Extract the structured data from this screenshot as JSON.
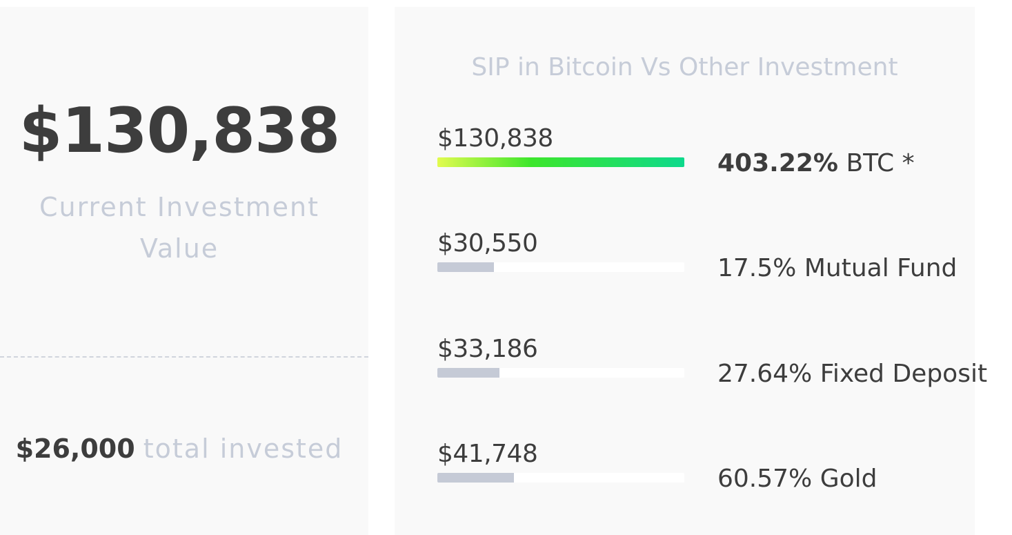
{
  "summary": {
    "current_value": "$130,838",
    "current_label": "Current Investment Value",
    "total_amount": "$26,000",
    "total_label": "total invested"
  },
  "comparison": {
    "title": "SIP in Bitcoin Vs Other Investment",
    "rows": [
      {
        "amount": "$130,838",
        "percent": "403.22%",
        "name": "BTC *",
        "progress": 1.0,
        "highlight": true
      },
      {
        "amount": "$30,550",
        "percent": "17.5%",
        "name": "Mutual Fund",
        "progress": 0.23,
        "highlight": false
      },
      {
        "amount": "$33,186",
        "percent": "27.64%",
        "name": "Fixed Deposit",
        "progress": 0.25,
        "highlight": false
      },
      {
        "amount": "$41,748",
        "percent": "60.57%",
        "name": "Gold",
        "progress": 0.31,
        "highlight": false
      }
    ]
  },
  "colors": {
    "panel_bg": "#f9f9f9",
    "text_dark": "#3d3d3d",
    "text_muted": "#c6ccd8",
    "bar_gray": "#c5cad6",
    "bar_btc_start": "#e2fb4f",
    "bar_btc_mid": "#3de62c",
    "bar_btc_end": "#0ed98c"
  }
}
